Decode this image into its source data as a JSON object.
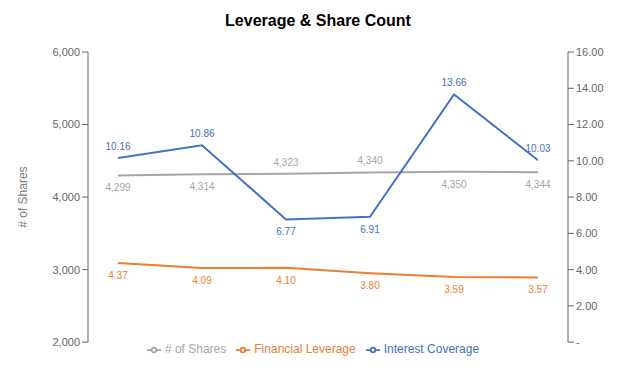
{
  "chart_data": {
    "type": "line",
    "title": "Leverage & Share Count",
    "x": [
      0,
      1,
      2,
      3,
      4,
      5
    ],
    "xlim": [
      0,
      5
    ],
    "y_label": "# of Shares",
    "ylim": [
      2000,
      6000
    ],
    "yticks": [
      {
        "value": 2000,
        "label": "2,000"
      },
      {
        "value": 3000,
        "label": "3,000"
      },
      {
        "value": 4000,
        "label": "4,000"
      },
      {
        "value": 5000,
        "label": "5,000"
      },
      {
        "value": 6000,
        "label": "6,000"
      }
    ],
    "y2lim": [
      0,
      16
    ],
    "y2ticks": [
      {
        "value": 0,
        "label": "-"
      },
      {
        "value": 2,
        "label": "2.00"
      },
      {
        "value": 4,
        "label": "4.00"
      },
      {
        "value": 6,
        "label": "6.00"
      },
      {
        "value": 8,
        "label": "8.00"
      },
      {
        "value": 10,
        "label": "10.00"
      },
      {
        "value": 12,
        "label": "12.00"
      },
      {
        "value": 14,
        "label": "14.00"
      },
      {
        "value": 16,
        "label": "16.00"
      }
    ],
    "tick_labels": "y",
    "grid": false,
    "legend": "bottom",
    "data_labels": true,
    "series": [
      {
        "name": "# of Shares",
        "color": "#a6a6a6",
        "values": [
          4299,
          4314,
          4323,
          4340,
          4350,
          4344
        ],
        "value_labels": [
          "4,299",
          "4,314",
          "4,323",
          "4,340",
          "4,350",
          "4,344"
        ]
      },
      {
        "name": "Interest Coverage",
        "color": "#4472C4",
        "axis": "y2",
        "values": [
          10.16,
          10.86,
          6.77,
          6.91,
          13.66,
          10.03
        ]
      },
      {
        "name": "Financial Leverage",
        "color": "#ED7D31",
        "axis": "y2",
        "values": [
          4.37,
          4.09,
          4.1,
          3.8,
          3.59,
          3.57
        ],
        "value_labels": [
          "4.37",
          "4.09",
          "4.10",
          "3.80",
          "3.59",
          "3.57"
        ]
      }
    ]
  }
}
